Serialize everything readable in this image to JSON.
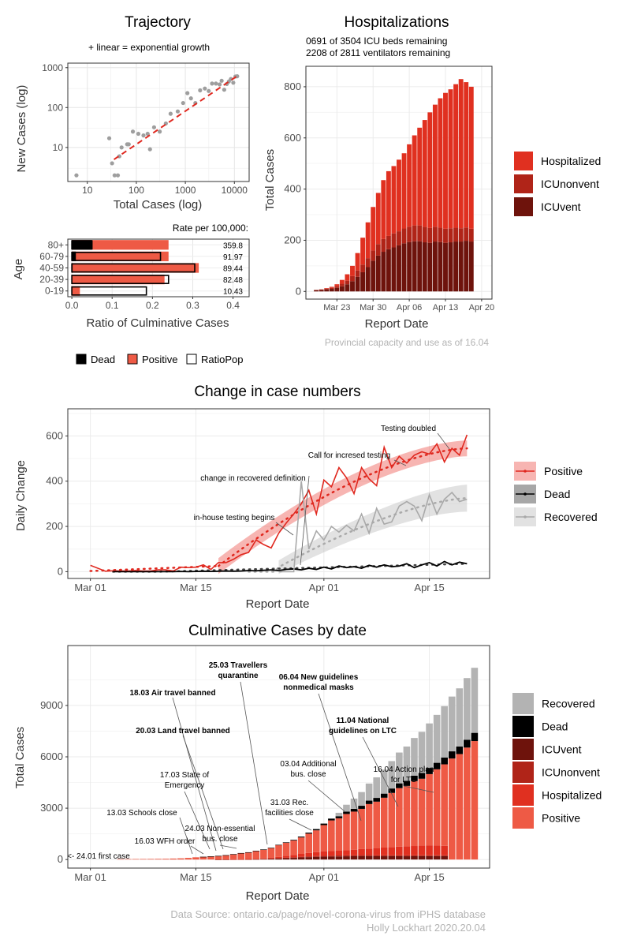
{
  "footer": {
    "source": "Data Source: ontario.ca/page/novel-corona-virus from iPHS database",
    "author": "Holly Lockhart 2020.20.04"
  },
  "colors": {
    "positive": "#ee5a45",
    "hospitalized": "#e03020",
    "icu_nonvent": "#b02418",
    "icu_vent": "#6e130c",
    "dead": "#000000",
    "recovered": "#b3b3b3",
    "positive_line": "#e0281f",
    "recovered_line": "#a9a9a9"
  },
  "chart_data": [
    {
      "id": "trajectory",
      "type": "scatter",
      "title": "Trajectory",
      "subtitle": "+ linear = exponential growth",
      "xlabel": "Total Cases (log)",
      "ylabel": "New Cases (log)",
      "x_scale": "log",
      "y_scale": "log",
      "xlim": [
        4,
        20000
      ],
      "ylim": [
        1.4,
        1300
      ],
      "x_ticks": [
        10,
        100,
        1000,
        10000
      ],
      "x_tick_labels": [
        "10",
        "100",
        "1000",
        "10000"
      ],
      "y_ticks": [
        10,
        100,
        1000
      ],
      "y_tick_labels": [
        "10",
        "100",
        "1000"
      ],
      "points": [
        [
          6,
          2
        ],
        [
          28,
          17
        ],
        [
          32,
          4
        ],
        [
          36,
          2
        ],
        [
          42,
          2
        ],
        [
          45,
          6
        ],
        [
          50,
          10
        ],
        [
          65,
          12
        ],
        [
          70,
          12
        ],
        [
          85,
          25
        ],
        [
          110,
          22
        ],
        [
          140,
          20
        ],
        [
          170,
          22
        ],
        [
          190,
          9
        ],
        [
          230,
          32
        ],
        [
          300,
          25
        ],
        [
          400,
          40
        ],
        [
          500,
          70
        ],
        [
          700,
          80
        ],
        [
          900,
          130
        ],
        [
          1100,
          230
        ],
        [
          1300,
          170
        ],
        [
          1600,
          130
        ],
        [
          2000,
          270
        ],
        [
          2500,
          300
        ],
        [
          3000,
          260
        ],
        [
          3500,
          400
        ],
        [
          4200,
          400
        ],
        [
          5000,
          380
        ],
        [
          5500,
          470
        ],
        [
          6200,
          280
        ],
        [
          7000,
          390
        ],
        [
          7700,
          450
        ],
        [
          8500,
          520
        ],
        [
          9500,
          420
        ],
        [
          10500,
          600
        ],
        [
          11400,
          610
        ]
      ],
      "fit_line": [
        [
          35,
          5
        ],
        [
          11000,
          600
        ]
      ]
    },
    {
      "id": "age",
      "type": "bar",
      "orientation": "horizontal",
      "xlabel": "Ratio of Culminative Cases",
      "ylabel": "Age",
      "table_title": "Rate per 100,000:",
      "categories": [
        "80+",
        "60-79",
        "40-59",
        "20-39",
        "0-19"
      ],
      "xlim": [
        -0.01,
        0.44
      ],
      "x_ticks": [
        0.0,
        0.1,
        0.2,
        0.3,
        0.4
      ],
      "x_tick_labels": [
        "0.0",
        "0.1",
        "0.2",
        "0.3",
        "0.4"
      ],
      "series": [
        {
          "name": "Positive",
          "values": [
            0.24,
            0.24,
            0.315,
            0.23,
            0.02
          ]
        },
        {
          "name": "RatioPop",
          "values": [
            0.05,
            0.22,
            0.305,
            0.24,
            0.185
          ]
        },
        {
          "name": "Dead",
          "values": [
            0.05,
            0.01,
            0.002,
            0.0,
            0.0
          ]
        }
      ],
      "rates": [
        "359.8",
        "91.97",
        "89.44",
        "82.48",
        "10.43"
      ],
      "legend": [
        "Dead",
        "Positive",
        "RatioPop"
      ]
    },
    {
      "id": "hospitalizations",
      "type": "bar",
      "stacked": true,
      "title": "Hospitalizations",
      "subtitle_lines": [
        "0691 of 3504 ICU beds remaining",
        "2208 of 2811 ventilators remaining"
      ],
      "xlabel": "Report Date",
      "ylabel": "Total Cases",
      "caption": "Provincial capacity and use as of 16.04",
      "ylim": [
        -30,
        880
      ],
      "y_ticks": [
        0,
        200,
        400,
        600,
        800
      ],
      "y_tick_labels": [
        "0",
        "200",
        "400",
        "600",
        "800"
      ],
      "x_tick_labels": [
        "Mar 23",
        "Mar 30",
        "Apr 06",
        "Apr 13",
        "Apr 20"
      ],
      "x_tick_days": [
        22,
        29,
        36,
        43,
        50
      ],
      "x_range_days": [
        16,
        52
      ],
      "start_day": 18,
      "series": [
        {
          "name": "ICUvent",
          "values": [
            5,
            6,
            8,
            10,
            14,
            20,
            28,
            40,
            57,
            75,
            95,
            120,
            140,
            155,
            165,
            172,
            180,
            188,
            193,
            196,
            196,
            192,
            190,
            195,
            193,
            190,
            192,
            195,
            195,
            198,
            195
          ]
        },
        {
          "name": "ICUnonvent",
          "values": [
            1,
            2,
            3,
            4,
            6,
            10,
            14,
            20,
            25,
            30,
            35,
            40,
            45,
            50,
            52,
            55,
            55,
            58,
            60,
            62,
            62,
            60,
            58,
            58,
            56,
            55,
            55,
            54,
            52,
            52,
            50
          ]
        },
        {
          "name": "Hospitalized",
          "values": [
            0,
            0,
            2,
            4,
            8,
            15,
            25,
            40,
            68,
            105,
            140,
            170,
            200,
            230,
            253,
            263,
            280,
            294,
            322,
            352,
            382,
            418,
            452,
            477,
            506,
            531,
            543,
            561,
            583,
            568,
            555
          ]
        }
      ],
      "legend": [
        "Hospitalized",
        "ICUnonvent",
        "ICUvent"
      ]
    },
    {
      "id": "daily_change",
      "type": "line",
      "title": "Change in case numbers",
      "xlabel": "Report Date",
      "ylabel": "Daily Change",
      "ylim": [
        -30,
        720
      ],
      "y_ticks": [
        0,
        200,
        400,
        600
      ],
      "y_tick_labels": [
        "0",
        "200",
        "400",
        "600"
      ],
      "x_tick_labels": [
        "Mar 01",
        "Mar 15",
        "Apr 01",
        "Apr 15"
      ],
      "x_tick_days": [
        1,
        15,
        32,
        46
      ],
      "x_range_days": [
        -2,
        54
      ],
      "series": [
        {
          "name": "Positive",
          "x_days": [
            1,
            3,
            4,
            5,
            6,
            7,
            8,
            9,
            10,
            11,
            12,
            13,
            14,
            15,
            16,
            17,
            18,
            19,
            20,
            21,
            22,
            23,
            24,
            25,
            26,
            27,
            28,
            29,
            30,
            31,
            32,
            33,
            34,
            35,
            36,
            37,
            38,
            39,
            40,
            41,
            42,
            43,
            44,
            45,
            46,
            47,
            48,
            49,
            50,
            51
          ],
          "values": [
            28,
            2,
            4,
            3,
            3,
            5,
            3,
            3,
            8,
            8,
            3,
            20,
            18,
            20,
            30,
            10,
            40,
            40,
            55,
            75,
            85,
            140,
            120,
            105,
            170,
            215,
            255,
            300,
            360,
            255,
            405,
            375,
            460,
            415,
            345,
            460,
            410,
            380,
            550,
            460,
            510,
            480,
            515,
            530,
            520,
            565,
            485,
            545,
            515,
            605
          ]
        },
        {
          "name": "Dead",
          "x_days": [
            4,
            5,
            6,
            7,
            8,
            9,
            10,
            11,
            12,
            13,
            14,
            15,
            16,
            17,
            18,
            19,
            20,
            21,
            22,
            23,
            24,
            25,
            26,
            27,
            28,
            29,
            30,
            31,
            32,
            33,
            34,
            35,
            36,
            37,
            38,
            39,
            40,
            41,
            42,
            43,
            44,
            45,
            46,
            47,
            48,
            49,
            50,
            51
          ],
          "values": [
            0,
            0,
            0,
            0,
            0,
            0,
            0,
            0,
            0,
            1,
            0,
            1,
            2,
            1,
            2,
            3,
            2,
            3,
            5,
            4,
            6,
            8,
            5,
            10,
            12,
            8,
            15,
            10,
            20,
            12,
            25,
            18,
            22,
            15,
            28,
            20,
            30,
            22,
            25,
            35,
            18,
            30,
            40,
            25,
            45,
            30,
            42,
            35
          ]
        },
        {
          "name": "Recovered",
          "x_days": [
            26,
            27,
            28,
            29,
            30,
            31,
            32,
            33,
            34,
            35,
            36,
            37,
            38,
            39,
            40,
            41,
            42,
            43,
            44,
            45,
            46,
            47,
            48,
            49,
            50,
            51
          ],
          "values": [
            0,
            0,
            0,
            400,
            100,
            180,
            140,
            200,
            175,
            205,
            180,
            255,
            170,
            280,
            210,
            220,
            290,
            310,
            290,
            225,
            340,
            255,
            320,
            350,
            310,
            320
          ]
        }
      ],
      "trends": [
        {
          "name": "Positive",
          "x_days": [
            18,
            51
          ],
          "lower_from": [
            10,
            620
          ],
          "lower_to": [
            60,
            560
          ],
          "center_from": [
            30,
            580
          ],
          "center_to": [
            30,
            610
          ],
          "upper_from": [
            60,
            520
          ],
          "upper_to": [
            10,
            520
          ]
        },
        {
          "name": "Recovered",
          "x_days": [
            26,
            51
          ]
        }
      ],
      "annotations": [
        "Testing  doubled",
        "Call for incresed testing",
        "change in recovered definition",
        "in-house testing begins"
      ],
      "legend": [
        "Positive",
        "Dead",
        "Recovered"
      ]
    },
    {
      "id": "cumulative",
      "type": "bar",
      "stacked": true,
      "title": "Culminative Cases by date",
      "xlabel": "Report Date",
      "ylabel": "Total Cases",
      "ylim": [
        -500,
        12500
      ],
      "y_ticks": [
        0,
        3000,
        6000,
        9000
      ],
      "y_tick_labels": [
        "0",
        "3000",
        "6000",
        "9000"
      ],
      "x_tick_labels": [
        "Mar 01",
        "Mar 15",
        "Apr 01",
        "Apr 15"
      ],
      "x_tick_days": [
        1,
        15,
        32,
        46
      ],
      "x_range_days": [
        -2,
        54
      ],
      "start_day": 5,
      "totals": [
        25,
        27,
        31,
        33,
        36,
        40,
        44,
        57,
        70,
        95,
        130,
        160,
        185,
        215,
        255,
        315,
        380,
        425,
        510,
        590,
        690,
        860,
        1005,
        1150,
        1340,
        1570,
        1780,
        2100,
        2390,
        2730,
        3200,
        3560,
        3940,
        4440,
        4800,
        5250,
        5750,
        6250,
        6600,
        7100,
        7460,
        7950,
        8450,
        8960,
        9520,
        10000,
        10600,
        11200
      ],
      "dead": [
        0,
        0,
        0,
        0,
        0,
        0,
        0,
        0,
        0,
        0,
        0,
        1,
        2,
        3,
        5,
        6,
        8,
        10,
        12,
        15,
        20,
        25,
        30,
        40,
        50,
        60,
        75,
        90,
        105,
        120,
        140,
        160,
        180,
        200,
        220,
        240,
        260,
        280,
        300,
        320,
        340,
        360,
        380,
        400,
        420,
        440,
        460,
        480
      ],
      "recovered": [
        0,
        0,
        0,
        0,
        0,
        0,
        0,
        0,
        0,
        0,
        0,
        0,
        0,
        0,
        0,
        0,
        0,
        0,
        0,
        0,
        0,
        0,
        0,
        0,
        0,
        0,
        0,
        0,
        0,
        200,
        400,
        600,
        800,
        1000,
        1200,
        1400,
        1600,
        1800,
        2000,
        2200,
        2400,
        2600,
        2800,
        3000,
        3200,
        3400,
        3600,
        3800
      ],
      "annotations": [
        "25.03 Travellers quarantine",
        "18.03 Air travel banned",
        "06.04 New guidelines nonmedical masks",
        "20.03 Land travel banned",
        "11.04 National guidelines on LTC",
        "17.03 State of Emergency",
        "03.04 Additional bus. close",
        "16.04 Action plan for LTC",
        "13.03 Schools close",
        "31.03 Rec. facilities close",
        "24.03 Non-essential bus. close",
        "16.03 WFH order",
        "<- 24.01 first case"
      ],
      "legend": [
        "Recovered",
        "Dead",
        "ICUvent",
        "ICUnonvent",
        "Hospitalized",
        "Positive"
      ]
    }
  ]
}
